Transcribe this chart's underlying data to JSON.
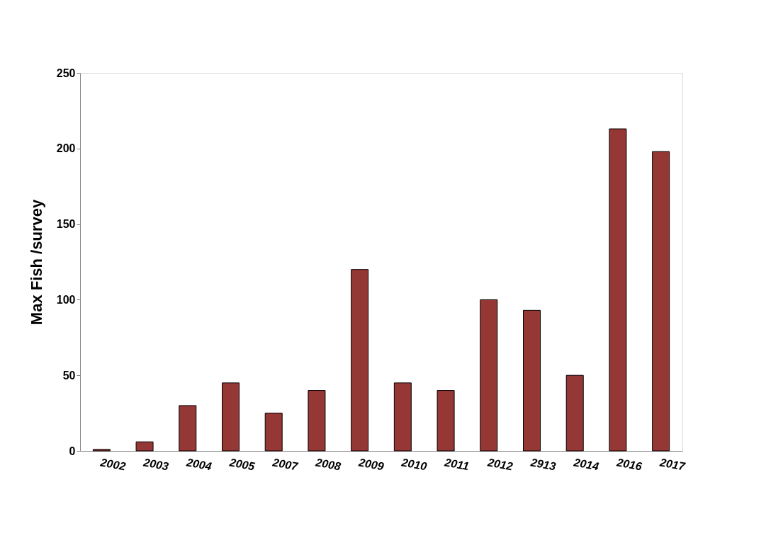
{
  "chart_data": {
    "type": "bar",
    "ylabel": "Max Fish /survey",
    "categories": [
      "2002",
      "2003",
      "2004",
      "2005",
      "2007",
      "2008",
      "2009",
      "2010",
      "2011",
      "2012",
      "2913",
      "2014",
      "2016",
      "2017"
    ],
    "values": [
      1,
      6,
      30,
      45,
      25,
      40,
      120,
      45,
      40,
      100,
      93,
      50,
      213,
      198
    ],
    "color": "#953735",
    "ylim": [
      0,
      250
    ],
    "yticks": [
      0,
      50,
      100,
      150,
      200,
      250
    ],
    "grid": false
  }
}
